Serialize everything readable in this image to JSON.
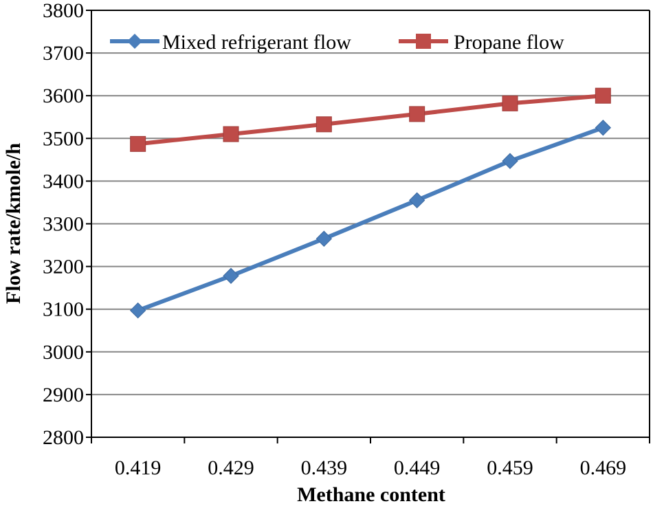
{
  "chart_data": {
    "type": "line",
    "title": "",
    "xlabel": "Methane content",
    "ylabel": "Flow  rate/kmole/h",
    "categories": [
      "0.419",
      "0.429",
      "0.439",
      "0.449",
      "0.459",
      "0.469"
    ],
    "ylim": [
      2800,
      3800
    ],
    "yticks": [
      2800,
      2900,
      3000,
      3100,
      3200,
      3300,
      3400,
      3500,
      3600,
      3700,
      3800
    ],
    "grid": true,
    "legend_position": "top",
    "series": [
      {
        "name": "Mixed refrigerant flow",
        "marker": "diamond",
        "color": "#4a7ebb",
        "values": [
          3097,
          3178,
          3265,
          3355,
          3447,
          3525
        ]
      },
      {
        "name": "Propane flow",
        "marker": "square",
        "color": "#be4b48",
        "values": [
          3487,
          3510,
          3533,
          3557,
          3582,
          3600
        ]
      }
    ]
  }
}
